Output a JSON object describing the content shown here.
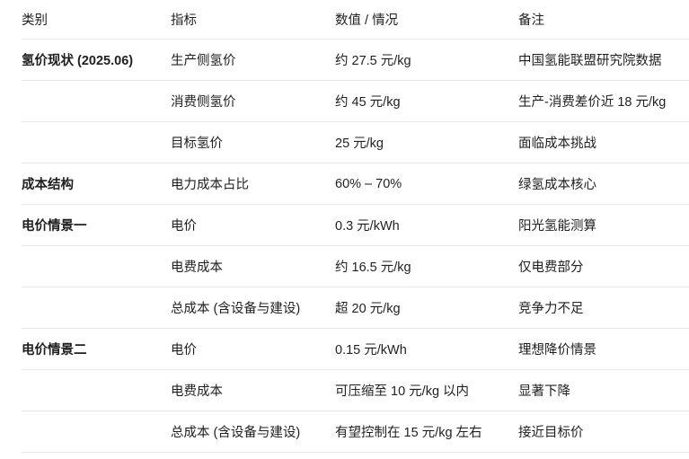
{
  "table": {
    "columns": {
      "category": "类别",
      "indicator": "指标",
      "value": "数值 / 情况",
      "note": "备注"
    },
    "rows": [
      {
        "category": "氢价现状 (2025.06)",
        "indicator": "生产侧氢价",
        "value": "约 27.5 元/kg",
        "note": "中国氢能联盟研究院数据"
      },
      {
        "category": "",
        "indicator": "消费侧氢价",
        "value": "约 45 元/kg",
        "note": "生产-消费差价近 18 元/kg"
      },
      {
        "category": "",
        "indicator": "目标氢价",
        "value": "25 元/kg",
        "note": "面临成本挑战"
      },
      {
        "category": "成本结构",
        "indicator": "电力成本占比",
        "value": "60% – 70%",
        "note": "绿氢成本核心"
      },
      {
        "category": "电价情景一",
        "indicator": "电价",
        "value": "0.3 元/kWh",
        "note": "阳光氢能测算"
      },
      {
        "category": "",
        "indicator": "电费成本",
        "value": "约 16.5 元/kg",
        "note": "仅电费部分"
      },
      {
        "category": "",
        "indicator": "总成本 (含设备与建设)",
        "value": "超 20 元/kg",
        "note": "竞争力不足"
      },
      {
        "category": "电价情景二",
        "indicator": "电价",
        "value": "0.15 元/kWh",
        "note": "理想降价情景"
      },
      {
        "category": "",
        "indicator": "电费成本",
        "value": "可压缩至 10 元/kg 以内",
        "note": "显著下降"
      },
      {
        "category": "",
        "indicator": "总成本 (含设备与建设)",
        "value": "有望控制在 15 元/kg 左右",
        "note": "接近目标价"
      }
    ],
    "colors": {
      "text": "#1f1f1f",
      "divider": "#e8e8e8",
      "background": "#ffffff"
    }
  }
}
